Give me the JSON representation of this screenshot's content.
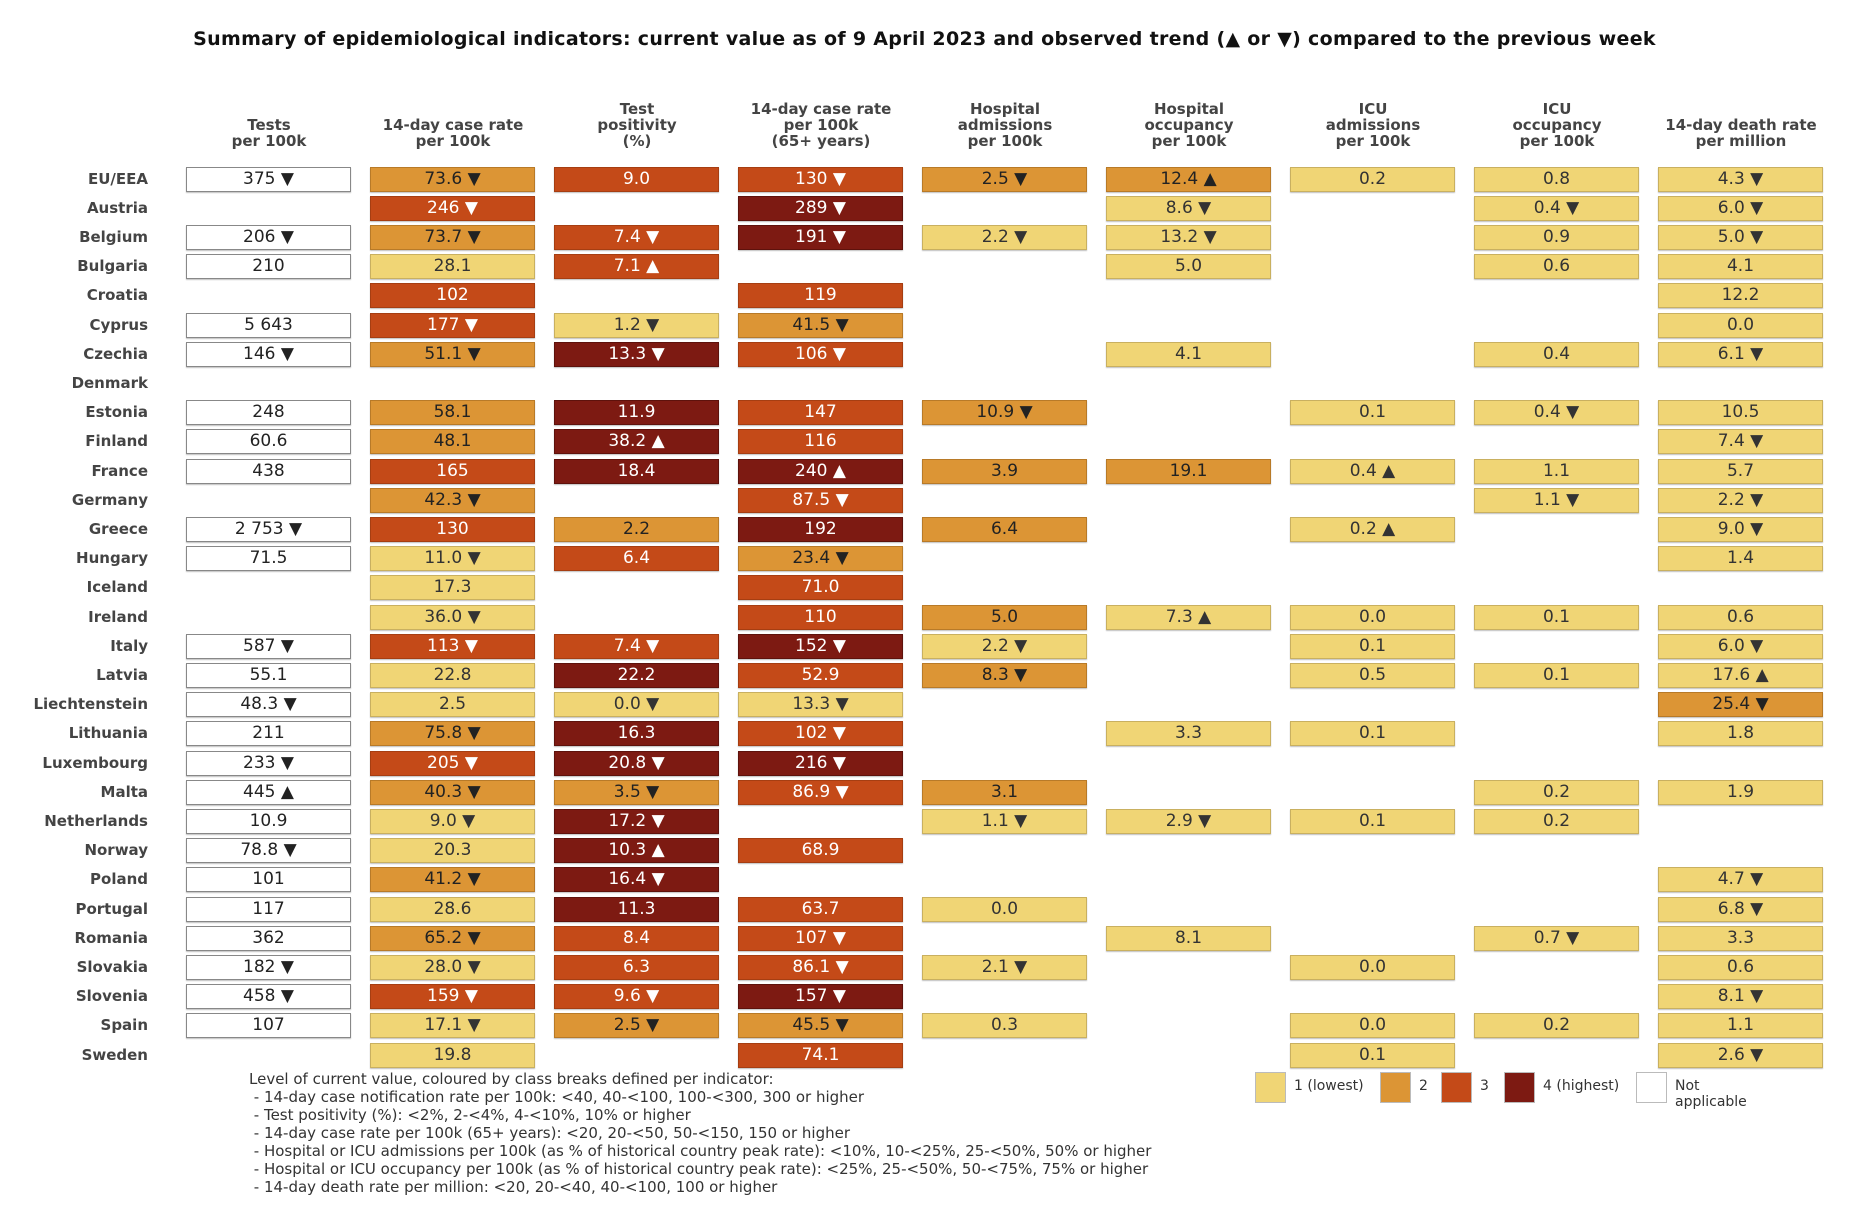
{
  "title": "Summary of epidemiological indicators: current value as of 9 April 2023 and observed trend (▲ or ▼) compared to the previous week",
  "chart_data": {
    "type": "table",
    "columns": [
      "Tests\nper 100k",
      "14-day case rate\nper 100k",
      "Test\npositivity\n(%)",
      "14-day case rate\nper 100k\n(65+ years)",
      "Hospital\nadmissions\nper 100k",
      "Hospital\noccupancy\nper 100k",
      "ICU\nadmissions\nper 100k",
      "ICU\noccupancy\nper 100k",
      "14-day death rate\nper million"
    ],
    "rows": [
      {
        "country": "EU/EEA",
        "cells": [
          [
            "375 ▼",
            0
          ],
          [
            "73.6 ▼",
            2
          ],
          [
            "9.0",
            3
          ],
          [
            "130 ▼",
            3
          ],
          [
            "2.5 ▼",
            2
          ],
          [
            "12.4 ▲",
            2
          ],
          [
            "0.2",
            1
          ],
          [
            "0.8",
            1
          ],
          [
            "4.3 ▼",
            1
          ]
        ]
      },
      {
        "country": "Austria",
        "cells": [
          null,
          [
            "246 ▼",
            3
          ],
          null,
          [
            "289 ▼",
            4
          ],
          null,
          [
            "8.6 ▼",
            1
          ],
          null,
          [
            "0.4 ▼",
            1
          ],
          [
            "6.0 ▼",
            1
          ]
        ]
      },
      {
        "country": "Belgium",
        "cells": [
          [
            "206 ▼",
            0
          ],
          [
            "73.7 ▼",
            2
          ],
          [
            "7.4 ▼",
            3
          ],
          [
            "191 ▼",
            4
          ],
          [
            "2.2 ▼",
            1
          ],
          [
            "13.2 ▼",
            1
          ],
          null,
          [
            "0.9",
            1
          ],
          [
            "5.0 ▼",
            1
          ]
        ]
      },
      {
        "country": "Bulgaria",
        "cells": [
          [
            "210",
            0
          ],
          [
            "28.1",
            1
          ],
          [
            "7.1 ▲",
            3
          ],
          null,
          null,
          [
            "5.0",
            1
          ],
          null,
          [
            "0.6",
            1
          ],
          [
            "4.1",
            1
          ]
        ]
      },
      {
        "country": "Croatia",
        "cells": [
          null,
          [
            "102",
            3
          ],
          null,
          [
            "119",
            3
          ],
          null,
          null,
          null,
          null,
          [
            "12.2",
            1
          ]
        ]
      },
      {
        "country": "Cyprus",
        "cells": [
          [
            "5 643",
            0
          ],
          [
            "177 ▼",
            3
          ],
          [
            "1.2 ▼",
            1
          ],
          [
            "41.5 ▼",
            2
          ],
          null,
          null,
          null,
          null,
          [
            "0.0",
            1
          ]
        ]
      },
      {
        "country": "Czechia",
        "cells": [
          [
            "146 ▼",
            0
          ],
          [
            "51.1 ▼",
            2
          ],
          [
            "13.3 ▼",
            4
          ],
          [
            "106 ▼",
            3
          ],
          null,
          [
            "4.1",
            1
          ],
          null,
          [
            "0.4",
            1
          ],
          [
            "6.1 ▼",
            1
          ]
        ]
      },
      {
        "country": "Denmark",
        "cells": [
          null,
          null,
          null,
          null,
          null,
          null,
          null,
          null,
          null
        ]
      },
      {
        "country": "Estonia",
        "cells": [
          [
            "248",
            0
          ],
          [
            "58.1",
            2
          ],
          [
            "11.9",
            4
          ],
          [
            "147",
            3
          ],
          [
            "10.9 ▼",
            2
          ],
          null,
          [
            "0.1",
            1
          ],
          [
            "0.4 ▼",
            1
          ],
          [
            "10.5",
            1
          ]
        ]
      },
      {
        "country": "Finland",
        "cells": [
          [
            "60.6",
            0
          ],
          [
            "48.1",
            2
          ],
          [
            "38.2 ▲",
            4
          ],
          [
            "116",
            3
          ],
          null,
          null,
          null,
          null,
          [
            "7.4 ▼",
            1
          ]
        ]
      },
      {
        "country": "France",
        "cells": [
          [
            "438",
            0
          ],
          [
            "165",
            3
          ],
          [
            "18.4",
            4
          ],
          [
            "240 ▲",
            4
          ],
          [
            "3.9",
            2
          ],
          [
            "19.1",
            2
          ],
          [
            "0.4 ▲",
            1
          ],
          [
            "1.1",
            1
          ],
          [
            "5.7",
            1
          ]
        ]
      },
      {
        "country": "Germany",
        "cells": [
          null,
          [
            "42.3 ▼",
            2
          ],
          null,
          [
            "87.5 ▼",
            3
          ],
          null,
          null,
          null,
          [
            "1.1 ▼",
            1
          ],
          [
            "2.2 ▼",
            1
          ]
        ]
      },
      {
        "country": "Greece",
        "cells": [
          [
            "2 753 ▼",
            0
          ],
          [
            "130",
            3
          ],
          [
            "2.2",
            2
          ],
          [
            "192",
            4
          ],
          [
            "6.4",
            2
          ],
          null,
          [
            "0.2 ▲",
            1
          ],
          null,
          [
            "9.0 ▼",
            1
          ]
        ]
      },
      {
        "country": "Hungary",
        "cells": [
          [
            "71.5",
            0
          ],
          [
            "11.0 ▼",
            1
          ],
          [
            "6.4",
            3
          ],
          [
            "23.4 ▼",
            2
          ],
          null,
          null,
          null,
          null,
          [
            "1.4",
            1
          ]
        ]
      },
      {
        "country": "Iceland",
        "cells": [
          null,
          [
            "17.3",
            1
          ],
          null,
          [
            "71.0",
            3
          ],
          null,
          null,
          null,
          null,
          null
        ]
      },
      {
        "country": "Ireland",
        "cells": [
          null,
          [
            "36.0 ▼",
            1
          ],
          null,
          [
            "110",
            3
          ],
          [
            "5.0",
            2
          ],
          [
            "7.3 ▲",
            1
          ],
          [
            "0.0",
            1
          ],
          [
            "0.1",
            1
          ],
          [
            "0.6",
            1
          ]
        ]
      },
      {
        "country": "Italy",
        "cells": [
          [
            "587 ▼",
            0
          ],
          [
            "113 ▼",
            3
          ],
          [
            "7.4 ▼",
            3
          ],
          [
            "152 ▼",
            4
          ],
          [
            "2.2 ▼",
            1
          ],
          null,
          [
            "0.1",
            1
          ],
          null,
          [
            "6.0 ▼",
            1
          ]
        ]
      },
      {
        "country": "Latvia",
        "cells": [
          [
            "55.1",
            0
          ],
          [
            "22.8",
            1
          ],
          [
            "22.2",
            4
          ],
          [
            "52.9",
            3
          ],
          [
            "8.3 ▼",
            2
          ],
          null,
          [
            "0.5",
            1
          ],
          [
            "0.1",
            1
          ],
          [
            "17.6 ▲",
            1
          ]
        ]
      },
      {
        "country": "Liechtenstein",
        "cells": [
          [
            "48.3 ▼",
            0
          ],
          [
            "2.5",
            1
          ],
          [
            "0.0 ▼",
            1
          ],
          [
            "13.3 ▼",
            1
          ],
          null,
          null,
          null,
          null,
          [
            "25.4 ▼",
            2
          ]
        ]
      },
      {
        "country": "Lithuania",
        "cells": [
          [
            "211",
            0
          ],
          [
            "75.8 ▼",
            2
          ],
          [
            "16.3",
            4
          ],
          [
            "102 ▼",
            3
          ],
          null,
          [
            "3.3",
            1
          ],
          [
            "0.1",
            1
          ],
          null,
          [
            "1.8",
            1
          ]
        ]
      },
      {
        "country": "Luxembourg",
        "cells": [
          [
            "233 ▼",
            0
          ],
          [
            "205 ▼",
            3
          ],
          [
            "20.8 ▼",
            4
          ],
          [
            "216 ▼",
            4
          ],
          null,
          null,
          null,
          null,
          null
        ]
      },
      {
        "country": "Malta",
        "cells": [
          [
            "445 ▲",
            0
          ],
          [
            "40.3 ▼",
            2
          ],
          [
            "3.5 ▼",
            2
          ],
          [
            "86.9 ▼",
            3
          ],
          [
            "3.1",
            2
          ],
          null,
          null,
          [
            "0.2",
            1
          ],
          [
            "1.9",
            1
          ]
        ]
      },
      {
        "country": "Netherlands",
        "cells": [
          [
            "10.9",
            0
          ],
          [
            "9.0 ▼",
            1
          ],
          [
            "17.2 ▼",
            4
          ],
          null,
          [
            "1.1 ▼",
            1
          ],
          [
            "2.9 ▼",
            1
          ],
          [
            "0.1",
            1
          ],
          [
            "0.2",
            1
          ],
          null
        ]
      },
      {
        "country": "Norway",
        "cells": [
          [
            "78.8 ▼",
            0
          ],
          [
            "20.3",
            1
          ],
          [
            "10.3 ▲",
            4
          ],
          [
            "68.9",
            3
          ],
          null,
          null,
          null,
          null,
          null
        ]
      },
      {
        "country": "Poland",
        "cells": [
          [
            "101",
            0
          ],
          [
            "41.2 ▼",
            2
          ],
          [
            "16.4 ▼",
            4
          ],
          null,
          null,
          null,
          null,
          null,
          [
            "4.7 ▼",
            1
          ]
        ]
      },
      {
        "country": "Portugal",
        "cells": [
          [
            "117",
            0
          ],
          [
            "28.6",
            1
          ],
          [
            "11.3",
            4
          ],
          [
            "63.7",
            3
          ],
          [
            "0.0",
            1
          ],
          null,
          null,
          null,
          [
            "6.8 ▼",
            1
          ]
        ]
      },
      {
        "country": "Romania",
        "cells": [
          [
            "362",
            0
          ],
          [
            "65.2 ▼",
            2
          ],
          [
            "8.4",
            3
          ],
          [
            "107 ▼",
            3
          ],
          null,
          [
            "8.1",
            1
          ],
          null,
          [
            "0.7 ▼",
            1
          ],
          [
            "3.3",
            1
          ]
        ]
      },
      {
        "country": "Slovakia",
        "cells": [
          [
            "182 ▼",
            0
          ],
          [
            "28.0 ▼",
            1
          ],
          [
            "6.3",
            3
          ],
          [
            "86.1 ▼",
            3
          ],
          [
            "2.1 ▼",
            1
          ],
          null,
          [
            "0.0",
            1
          ],
          null,
          [
            "0.6",
            1
          ]
        ]
      },
      {
        "country": "Slovenia",
        "cells": [
          [
            "458 ▼",
            0
          ],
          [
            "159 ▼",
            3
          ],
          [
            "9.6 ▼",
            3
          ],
          [
            "157 ▼",
            4
          ],
          null,
          null,
          null,
          null,
          [
            "8.1 ▼",
            1
          ]
        ]
      },
      {
        "country": "Spain",
        "cells": [
          [
            "107",
            0
          ],
          [
            "17.1 ▼",
            1
          ],
          [
            "2.5 ▼",
            2
          ],
          [
            "45.5 ▼",
            2
          ],
          [
            "0.3",
            1
          ],
          null,
          [
            "0.0",
            1
          ],
          [
            "0.2",
            1
          ],
          [
            "1.1",
            1
          ]
        ]
      },
      {
        "country": "Sweden",
        "cells": [
          null,
          [
            "19.8",
            1
          ],
          null,
          [
            "74.1",
            3
          ],
          null,
          null,
          [
            "0.1",
            1
          ],
          null,
          [
            "2.6 ▼",
            1
          ]
        ]
      }
    ],
    "legend": [
      {
        "label": "1 (lowest)",
        "color": "#f0d575"
      },
      {
        "label": "2",
        "color": "#dc9535"
      },
      {
        "label": "3",
        "color": "#c44a18"
      },
      {
        "label": "4 (highest)",
        "color": "#7d1a12"
      },
      {
        "label": "Not applicable",
        "color": "#ffffff"
      }
    ],
    "notes": [
      "Level of current value, coloured by class breaks defined per indicator:",
      " - 14-day case notification rate per 100k: <40, 40-<100, 100-<300, 300 or higher",
      " - Test positivity (%): <2%, 2-<4%, 4-<10%, 10% or higher",
      " - 14-day case rate per 100k (65+ years): <20, 20-<50, 50-<150, 150 or higher",
      " - Hospital or ICU admissions per 100k (as % of historical country peak rate): <10%, 10-<25%, 25-<50%, 50% or higher",
      " - Hospital or ICU occupancy per 100k (as % of historical country peak rate): <25%, 25-<50%, 50-<75%, 75% or higher",
      " - 14-day death rate per million: <20, 20-<40, 40-<100, 100 or higher"
    ]
  }
}
